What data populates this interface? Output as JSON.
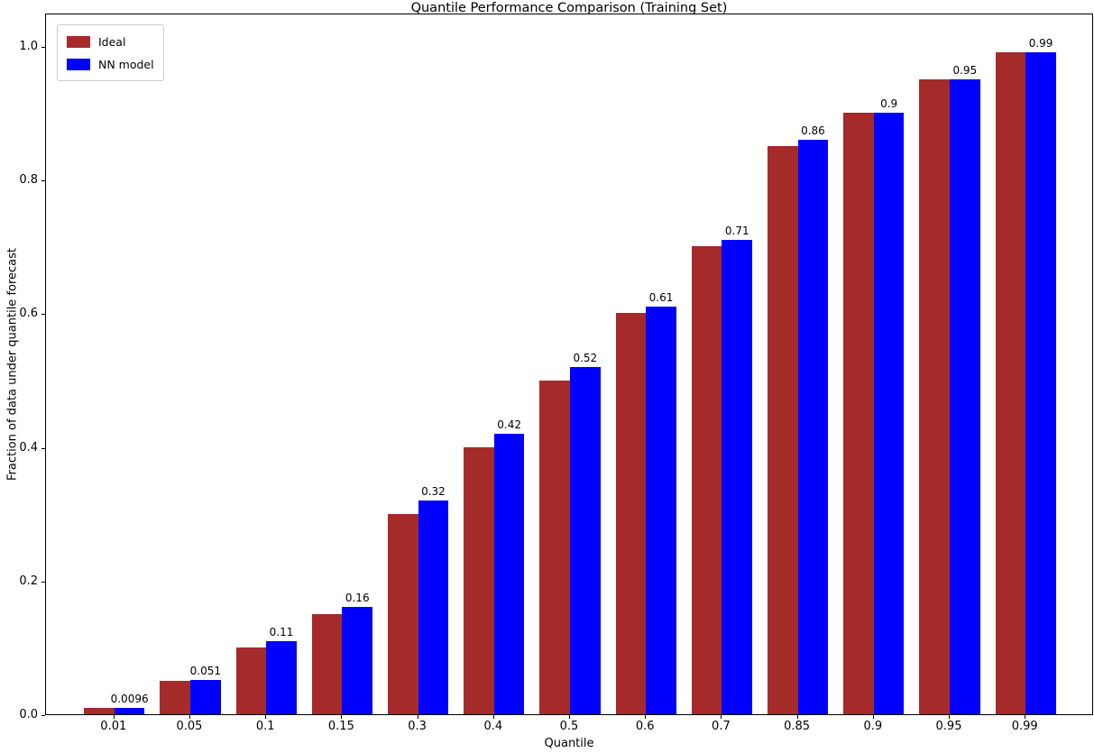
{
  "chart_data": {
    "type": "bar",
    "title": "Quantile Performance Comparison (Training Set)",
    "xlabel": "Quantile",
    "ylabel": "Fraction of data under quantile forecast",
    "categories": [
      "0.01",
      "0.05",
      "0.1",
      "0.15",
      "0.3",
      "0.4",
      "0.5",
      "0.6",
      "0.7",
      "0.85",
      "0.9",
      "0.95",
      "0.99"
    ],
    "series": [
      {
        "name": "Ideal",
        "color": "#a52a2a",
        "values": [
          0.01,
          0.05,
          0.1,
          0.15,
          0.3,
          0.4,
          0.5,
          0.6,
          0.7,
          0.85,
          0.9,
          0.95,
          0.99
        ]
      },
      {
        "name": "NN model",
        "color": "#0000ff",
        "values": [
          0.0096,
          0.051,
          0.11,
          0.16,
          0.32,
          0.42,
          0.52,
          0.61,
          0.71,
          0.86,
          0.9,
          0.95,
          0.99
        ],
        "bar_labels": [
          "0.0096",
          "0.051",
          "0.11",
          "0.16",
          "0.32",
          "0.42",
          "0.52",
          "0.61",
          "0.71",
          "0.86",
          "0.9",
          "0.95",
          "0.99"
        ]
      }
    ],
    "yticks": [
      "0.0",
      "0.2",
      "0.4",
      "0.6",
      "0.8",
      "1.0"
    ],
    "ylim": [
      0,
      1.05
    ],
    "legend_position": "upper left",
    "grid": false,
    "axis_color": "#000000"
  }
}
